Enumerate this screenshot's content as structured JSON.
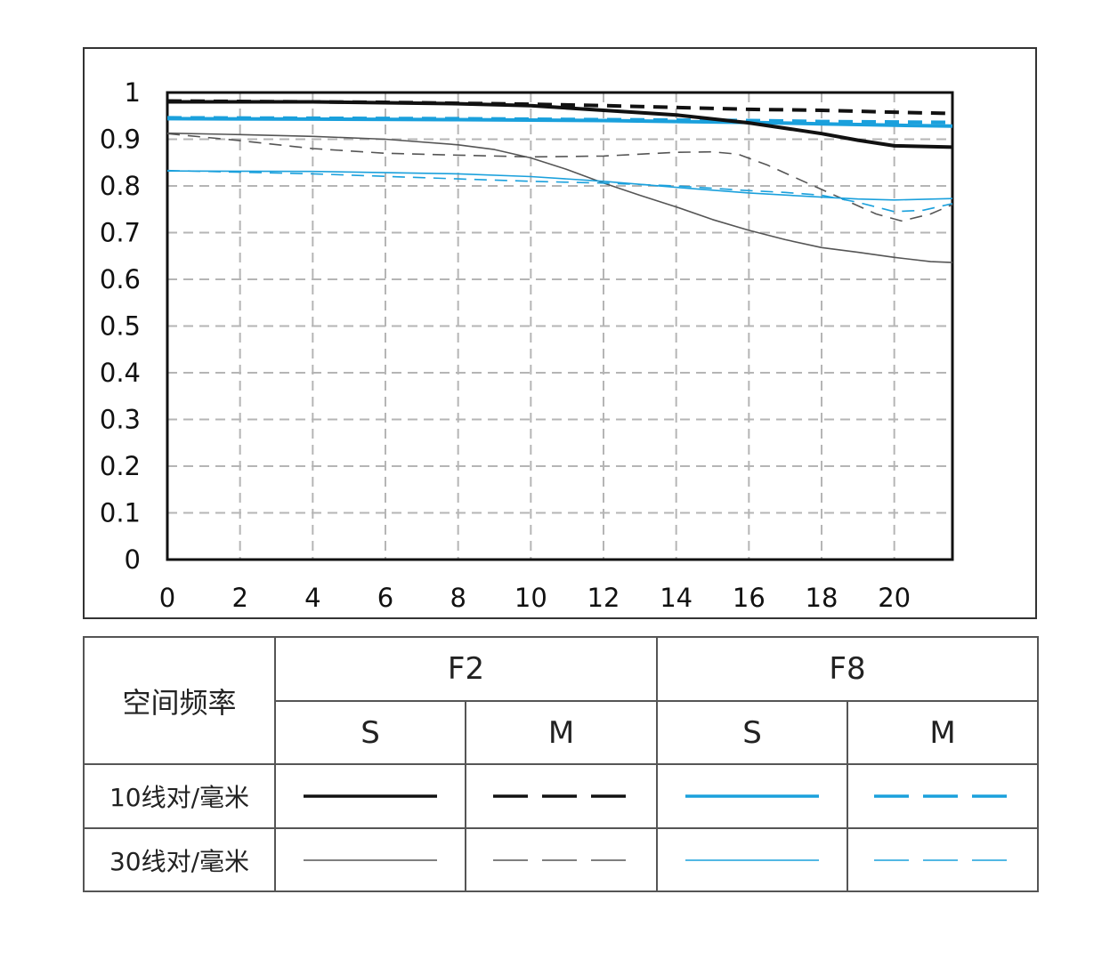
{
  "chart_data": {
    "type": "line",
    "xlim": [
      0,
      21.6
    ],
    "ylim": [
      0,
      1
    ],
    "grid": true,
    "x_ticks": [
      "0",
      "2",
      "4",
      "6",
      "8",
      "10",
      "12",
      "14",
      "16",
      "18",
      "20"
    ],
    "y_ticks": [
      "0",
      "0.1",
      "0.2",
      "0.3",
      "0.4",
      "0.5",
      "0.6",
      "0.7",
      "0.8",
      "0.9",
      "1"
    ],
    "series": [
      {
        "name": "F2 S 10线对/毫米",
        "color": "#111111",
        "style": "solid",
        "weight": "thick",
        "points": [
          [
            0,
            0.98
          ],
          [
            4,
            0.98
          ],
          [
            8,
            0.976
          ],
          [
            10,
            0.972
          ],
          [
            12,
            0.962
          ],
          [
            14,
            0.952
          ],
          [
            16,
            0.935
          ],
          [
            18,
            0.912
          ],
          [
            19,
            0.898
          ],
          [
            20,
            0.886
          ],
          [
            21.6,
            0.883
          ]
        ]
      },
      {
        "name": "F2 M 10线对/毫米",
        "color": "#111111",
        "style": "dashed",
        "weight": "thick",
        "points": [
          [
            0,
            0.982
          ],
          [
            6,
            0.979
          ],
          [
            10,
            0.975
          ],
          [
            12,
            0.972
          ],
          [
            14,
            0.968
          ],
          [
            16,
            0.964
          ],
          [
            18,
            0.962
          ],
          [
            20,
            0.958
          ],
          [
            21.6,
            0.955
          ]
        ]
      },
      {
        "name": "F8 S 10线对/毫米",
        "color": "#1aa0dc",
        "style": "solid",
        "weight": "thick",
        "points": [
          [
            0,
            0.944
          ],
          [
            4,
            0.943
          ],
          [
            8,
            0.942
          ],
          [
            12,
            0.94
          ],
          [
            16,
            0.936
          ],
          [
            18,
            0.933
          ],
          [
            20,
            0.93
          ],
          [
            21.6,
            0.928
          ]
        ]
      },
      {
        "name": "F8 M 10线对/毫米",
        "color": "#1aa0dc",
        "style": "dashed",
        "weight": "thick",
        "points": [
          [
            0,
            0.946
          ],
          [
            4,
            0.945
          ],
          [
            8,
            0.944
          ],
          [
            12,
            0.942
          ],
          [
            16,
            0.94
          ],
          [
            18,
            0.938
          ],
          [
            20,
            0.937
          ],
          [
            21.6,
            0.936
          ]
        ]
      },
      {
        "name": "F2 S 30线对/毫米",
        "color": "#555555",
        "style": "solid",
        "weight": "thin",
        "points": [
          [
            0,
            0.913
          ],
          [
            2,
            0.91
          ],
          [
            4,
            0.906
          ],
          [
            6,
            0.9
          ],
          [
            8,
            0.888
          ],
          [
            9,
            0.878
          ],
          [
            10,
            0.86
          ],
          [
            11,
            0.835
          ],
          [
            12,
            0.806
          ],
          [
            13,
            0.78
          ],
          [
            14,
            0.755
          ],
          [
            15,
            0.728
          ],
          [
            16,
            0.705
          ],
          [
            17,
            0.685
          ],
          [
            18,
            0.668
          ],
          [
            19,
            0.658
          ],
          [
            20,
            0.647
          ],
          [
            21,
            0.638
          ],
          [
            21.6,
            0.636
          ]
        ]
      },
      {
        "name": "F2 M 30线对/毫米",
        "color": "#555555",
        "style": "dashed",
        "weight": "thin",
        "points": [
          [
            0,
            0.912
          ],
          [
            2,
            0.897
          ],
          [
            4,
            0.88
          ],
          [
            6,
            0.87
          ],
          [
            8,
            0.866
          ],
          [
            10,
            0.862
          ],
          [
            12,
            0.864
          ],
          [
            13,
            0.868
          ],
          [
            14,
            0.872
          ],
          [
            15,
            0.873
          ],
          [
            15.7,
            0.868
          ],
          [
            16.5,
            0.845
          ],
          [
            17.5,
            0.81
          ],
          [
            18.5,
            0.775
          ],
          [
            19.5,
            0.74
          ],
          [
            20.2,
            0.725
          ],
          [
            21,
            0.74
          ],
          [
            21.6,
            0.76
          ]
        ]
      },
      {
        "name": "F8 S 30线对/毫米",
        "color": "#1aa0dc",
        "style": "solid",
        "weight": "thin",
        "points": [
          [
            0,
            0.832
          ],
          [
            4,
            0.831
          ],
          [
            8,
            0.826
          ],
          [
            10,
            0.82
          ],
          [
            12,
            0.81
          ],
          [
            14,
            0.797
          ],
          [
            16,
            0.785
          ],
          [
            18,
            0.776
          ],
          [
            19,
            0.772
          ],
          [
            20,
            0.77
          ],
          [
            21.6,
            0.773
          ]
        ]
      },
      {
        "name": "F8 M 30线对/毫米",
        "color": "#1aa0dc",
        "style": "dashed",
        "weight": "thin",
        "points": [
          [
            0,
            0.833
          ],
          [
            4,
            0.826
          ],
          [
            8,
            0.815
          ],
          [
            10,
            0.81
          ],
          [
            12,
            0.806
          ],
          [
            14,
            0.8
          ],
          [
            16,
            0.79
          ],
          [
            17,
            0.786
          ],
          [
            18,
            0.78
          ],
          [
            19,
            0.765
          ],
          [
            20,
            0.745
          ],
          [
            20.8,
            0.748
          ],
          [
            21.6,
            0.762
          ]
        ]
      }
    ]
  },
  "legend": {
    "corner_label": "空间频率",
    "groups": [
      "F2",
      "F8"
    ],
    "columns": [
      "S",
      "M",
      "S",
      "M"
    ],
    "rows": [
      "10线对/毫米",
      "30线对/毫米"
    ]
  },
  "colors": {
    "black": "#111111",
    "gray": "#555555",
    "blue": "#1aa0dc"
  }
}
